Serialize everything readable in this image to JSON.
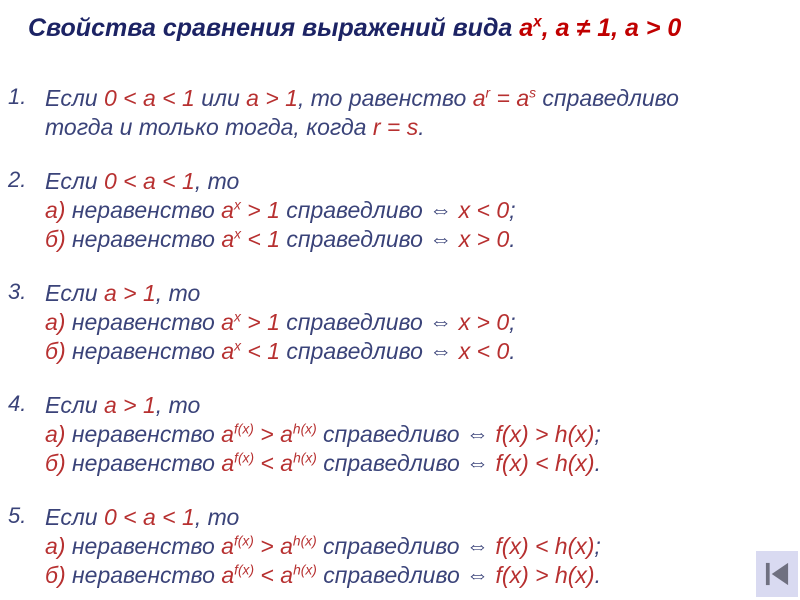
{
  "colors": {
    "navy": "#1c2364",
    "blue": "#3a4379",
    "red": "#b73030",
    "titleRed": "#c00000",
    "buttonBg": "#d9daf1",
    "buttonIcon": "#6f7080"
  },
  "title": {
    "segments": [
      {
        "text": "Свойства сравнения выражений вида ",
        "color": "navy"
      },
      {
        "text": "a",
        "color": "titleRed"
      },
      {
        "text": "x",
        "color": "titleRed",
        "sup": true
      },
      {
        "text": ", a ≠ 1, a > 0",
        "color": "titleRed"
      }
    ]
  },
  "items": [
    {
      "number": "1.",
      "lines": [
        {
          "segments": [
            {
              "text": "Если ",
              "color": "blue"
            },
            {
              "text": "0 < a < 1",
              "color": "red"
            },
            {
              "text": " или ",
              "color": "blue"
            },
            {
              "text": "a > 1",
              "color": "red"
            },
            {
              "text": ", то равенство ",
              "color": "blue"
            },
            {
              "text": "a",
              "color": "red"
            },
            {
              "text": "r",
              "color": "red",
              "sup": true
            },
            {
              "text": " = a",
              "color": "red"
            },
            {
              "text": "s",
              "color": "red",
              "sup": true
            },
            {
              "text": " справедливо",
              "color": "blue"
            }
          ]
        },
        {
          "segments": [
            {
              "text": "тогда и только тогда, когда ",
              "color": "blue"
            },
            {
              "text": "r = s",
              "color": "red"
            },
            {
              "text": ".",
              "color": "blue"
            }
          ]
        }
      ]
    },
    {
      "number": "2.",
      "lines": [
        {
          "segments": [
            {
              "text": "Если ",
              "color": "blue"
            },
            {
              "text": "0 < a < 1",
              "color": "red"
            },
            {
              "text": ", то",
              "color": "blue"
            }
          ]
        },
        {
          "segments": [
            {
              "text": "а) ",
              "color": "red"
            },
            {
              "text": "неравенство ",
              "color": "blue"
            },
            {
              "text": "a",
              "color": "red"
            },
            {
              "text": "x",
              "color": "red",
              "sup": true
            },
            {
              "text": " > 1",
              "color": "red"
            },
            {
              "text": " справедливо ⇔ ",
              "color": "blue"
            },
            {
              "text": "x < 0",
              "color": "red"
            },
            {
              "text": ";",
              "color": "blue"
            }
          ]
        },
        {
          "segments": [
            {
              "text": "б) ",
              "color": "red"
            },
            {
              "text": "неравенство ",
              "color": "blue"
            },
            {
              "text": "a",
              "color": "red"
            },
            {
              "text": "x",
              "color": "red",
              "sup": true
            },
            {
              "text": " < 1",
              "color": "red"
            },
            {
              "text": " справедливо ⇔ ",
              "color": "blue"
            },
            {
              "text": "x > 0",
              "color": "red"
            },
            {
              "text": ".",
              "color": "blue"
            }
          ]
        }
      ]
    },
    {
      "number": "3.",
      "lines": [
        {
          "segments": [
            {
              "text": "Если ",
              "color": "blue"
            },
            {
              "text": "a > 1",
              "color": "red"
            },
            {
              "text": ", то",
              "color": "blue"
            }
          ]
        },
        {
          "segments": [
            {
              "text": "а) ",
              "color": "red"
            },
            {
              "text": "неравенство ",
              "color": "blue"
            },
            {
              "text": "a",
              "color": "red"
            },
            {
              "text": "x",
              "color": "red",
              "sup": true
            },
            {
              "text": " > 1",
              "color": "red"
            },
            {
              "text": " справедливо ⇔ ",
              "color": "blue"
            },
            {
              "text": "x > 0",
              "color": "red"
            },
            {
              "text": ";",
              "color": "blue"
            }
          ]
        },
        {
          "segments": [
            {
              "text": "б) ",
              "color": "red"
            },
            {
              "text": "неравенство ",
              "color": "blue"
            },
            {
              "text": "a",
              "color": "red"
            },
            {
              "text": "x",
              "color": "red",
              "sup": true
            },
            {
              "text": " < 1",
              "color": "red"
            },
            {
              "text": " справедливо ⇔ ",
              "color": "blue"
            },
            {
              "text": "x < 0",
              "color": "red"
            },
            {
              "text": ".",
              "color": "blue"
            }
          ]
        }
      ]
    },
    {
      "number": "4.",
      "lines": [
        {
          "segments": [
            {
              "text": "Если ",
              "color": "blue"
            },
            {
              "text": "a > 1",
              "color": "red"
            },
            {
              "text": ", то",
              "color": "blue"
            }
          ]
        },
        {
          "segments": [
            {
              "text": "а) ",
              "color": "red"
            },
            {
              "text": "неравенство ",
              "color": "blue"
            },
            {
              "text": "a",
              "color": "red"
            },
            {
              "text": "f(x)",
              "color": "red",
              "sup": true
            },
            {
              "text": " > a",
              "color": "red"
            },
            {
              "text": "h(x)",
              "color": "red",
              "sup": true
            },
            {
              "text": " справедливо ⇔ ",
              "color": "blue"
            },
            {
              "text": "f(x) > h(x)",
              "color": "red"
            },
            {
              "text": ";",
              "color": "blue"
            }
          ]
        },
        {
          "segments": [
            {
              "text": "б) ",
              "color": "red"
            },
            {
              "text": "неравенство ",
              "color": "blue"
            },
            {
              "text": "a",
              "color": "red"
            },
            {
              "text": "f(x)",
              "color": "red",
              "sup": true
            },
            {
              "text": " < a",
              "color": "red"
            },
            {
              "text": "h(x)",
              "color": "red",
              "sup": true
            },
            {
              "text": " справедливо ⇔ ",
              "color": "blue"
            },
            {
              "text": "f(x) < h(x)",
              "color": "red"
            },
            {
              "text": ".",
              "color": "blue"
            }
          ]
        }
      ]
    },
    {
      "number": "5.",
      "lines": [
        {
          "segments": [
            {
              "text": "Если ",
              "color": "blue"
            },
            {
              "text": "0 < a < 1",
              "color": "red"
            },
            {
              "text": ", то",
              "color": "blue"
            }
          ]
        },
        {
          "segments": [
            {
              "text": "а) ",
              "color": "red"
            },
            {
              "text": "неравенство ",
              "color": "blue"
            },
            {
              "text": "a",
              "color": "red"
            },
            {
              "text": "f(x)",
              "color": "red",
              "sup": true
            },
            {
              "text": " > a",
              "color": "red"
            },
            {
              "text": "h(x)",
              "color": "red",
              "sup": true
            },
            {
              "text": " справедливо ⇔ ",
              "color": "blue"
            },
            {
              "text": "f(x) < h(x)",
              "color": "red"
            },
            {
              "text": ";",
              "color": "blue"
            }
          ]
        },
        {
          "segments": [
            {
              "text": "б) ",
              "color": "red"
            },
            {
              "text": "неравенство ",
              "color": "blue"
            },
            {
              "text": "a",
              "color": "red"
            },
            {
              "text": "f(x)",
              "color": "red",
              "sup": true
            },
            {
              "text": " < a",
              "color": "red"
            },
            {
              "text": "h(x)",
              "color": "red",
              "sup": true
            },
            {
              "text": " справедливо ⇔ ",
              "color": "blue"
            },
            {
              "text": "f(x) > h(x)",
              "color": "red"
            },
            {
              "text": ".",
              "color": "blue"
            }
          ]
        }
      ]
    }
  ],
  "nav": {
    "icon": "skip-to-start-icon"
  }
}
